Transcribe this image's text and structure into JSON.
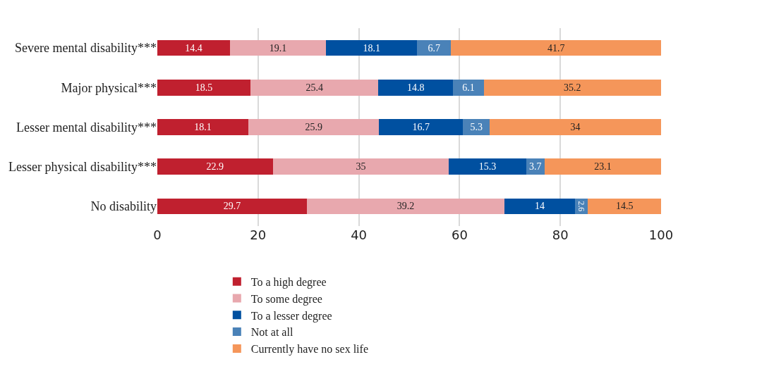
{
  "chart_data": {
    "type": "bar",
    "orientation": "horizontal",
    "stacked": true,
    "data_labels": true,
    "grid": "x",
    "legend": "bottom",
    "categories": [
      "Severe mental disability***",
      "Major physical***",
      "Lesser mental disability***",
      "Lesser physical disability***",
      "No disability"
    ],
    "xlim": [
      0,
      100
    ],
    "xticks": [
      0,
      20,
      40,
      60,
      80,
      100
    ],
    "series": [
      {
        "name": "To a high degree",
        "color": "#c0202f",
        "values": [
          14.4,
          18.5,
          18.1,
          22.9,
          29.7
        ]
      },
      {
        "name": "To some degree",
        "color": "#e8a8ae",
        "values": [
          19.1,
          25.4,
          25.9,
          35,
          39.2
        ]
      },
      {
        "name": "To a lesser degree",
        "color": "#0050a0",
        "values": [
          18.1,
          14.8,
          16.7,
          15.3,
          14
        ]
      },
      {
        "name": "Not at all",
        "color": "#4a82b8",
        "values": [
          6.7,
          6.1,
          5.3,
          3.7,
          2.6
        ]
      },
      {
        "name": "Currently have no sex life",
        "color": "#f5965a",
        "values": [
          41.7,
          35.2,
          34,
          23.1,
          14.5
        ]
      }
    ]
  }
}
